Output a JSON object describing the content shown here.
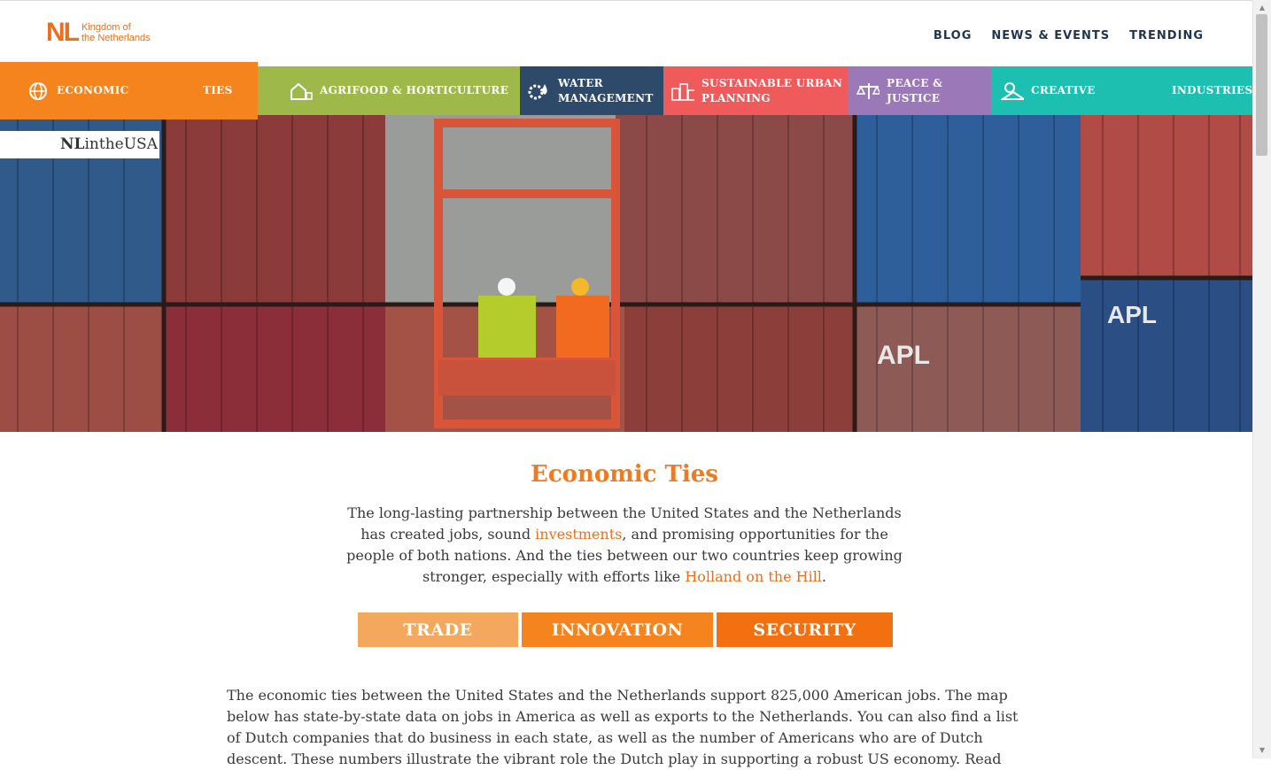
{
  "header": {
    "logo_mark": "NL",
    "logo_line1": "Kingdom of",
    "logo_line2": "the Netherlands",
    "nav": [
      "BLOG",
      "NEWS & EVENTS",
      "TRENDING"
    ]
  },
  "categories": [
    {
      "name": "cat-economic-ties",
      "label_a": "ECONOMIC",
      "label_b": "TIES",
      "icon": "globe-handshake-icon",
      "color": "#f5841f"
    },
    {
      "name": "cat-agrifood",
      "label_a": "AGRIFOOD & HORTICULTURE",
      "label_b": "",
      "icon": "greenhouse-icon",
      "color": "#9eb84a"
    },
    {
      "name": "cat-water",
      "label_a": "WATER",
      "label_b": "MANAGEMENT",
      "icon": "water-drop-gear-icon",
      "color": "#2e4a6b"
    },
    {
      "name": "cat-urban",
      "label_a": "SUSTAINABLE URBAN",
      "label_b": "PLANNING",
      "icon": "city-icon",
      "color": "#ef5a5a"
    },
    {
      "name": "cat-peace",
      "label_a": "PEACE &",
      "label_b": "JUSTICE",
      "icon": "scales-icon",
      "color": "#9b79b8"
    },
    {
      "name": "cat-creative",
      "label_a": "CREATIVE",
      "label_b": "INDUSTRIES",
      "icon": "creative-icon",
      "color": "#1dbfb1"
    }
  ],
  "hero": {
    "badge_nl": "NL",
    "badge_rest": "intheUSA"
  },
  "main": {
    "title": "Economic Ties",
    "intro_1": "The long-lasting partnership between the United States and the Netherlands has created jobs, sound ",
    "intro_link1": "investments",
    "intro_2": ", and promising opportunities for the people of both nations. And the ties between our two countries keep growing stronger, especially with efforts like ",
    "intro_link2": "Holland on the Hill",
    "intro_3": ".",
    "tabs": [
      {
        "label": "TRADE",
        "color": "#f4a85e"
      },
      {
        "label": "INNOVATION",
        "color": "#f5841f"
      },
      {
        "label": "SECURITY",
        "color": "#f2700f"
      }
    ],
    "body": "The economic ties between the United States and the Netherlands support 825,000 American jobs. The map below has state-by-state data on jobs in America as well as exports to the Netherlands. You can also find a list of Dutch companies that do business in each state, as well as the number of Americans who are of Dutch descent. These numbers illustrate the vibrant role the Dutch play in supporting a robust US economy. Read"
  }
}
